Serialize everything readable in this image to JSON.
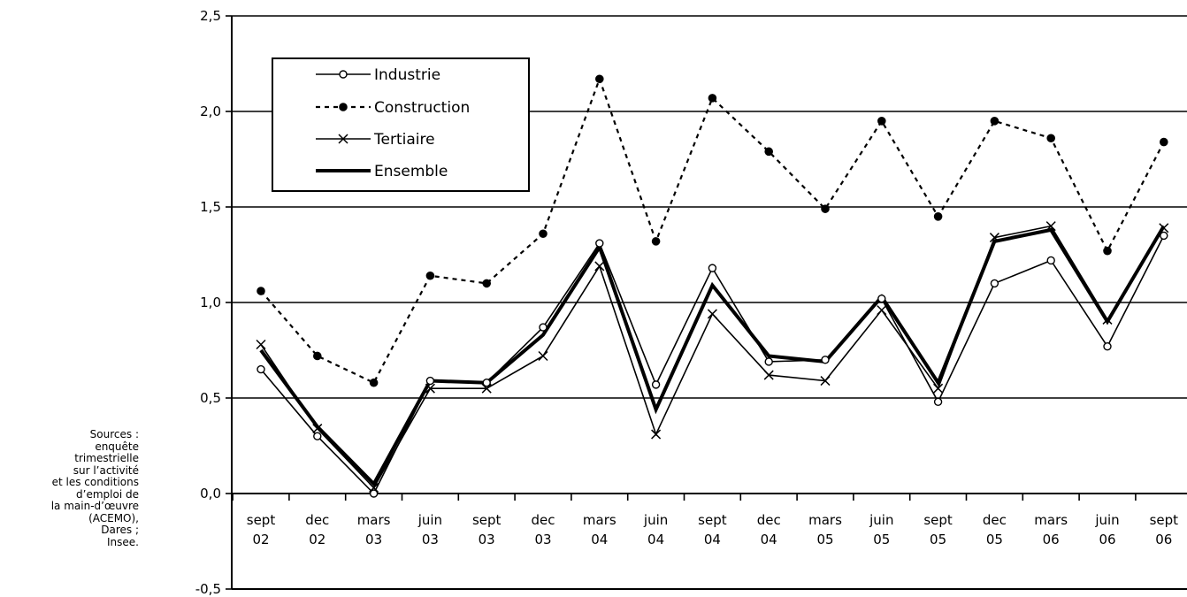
{
  "source_note": [
    "Sources :",
    "enquête",
    "trimestrielle",
    "sur l’activité",
    "et les conditions",
    "d’emploi de",
    "la main-d’œuvre",
    "(ACEMO),",
    "Dares ;",
    "Insee."
  ],
  "chart_data": {
    "type": "line",
    "title": "",
    "xlabel": "",
    "ylabel": "",
    "categories": [
      [
        "sept",
        "02"
      ],
      [
        "dec",
        "02"
      ],
      [
        "mars",
        "03"
      ],
      [
        "juin",
        "03"
      ],
      [
        "sept",
        "03"
      ],
      [
        "dec",
        "03"
      ],
      [
        "mars",
        "04"
      ],
      [
        "juin",
        "04"
      ],
      [
        "sept",
        "04"
      ],
      [
        "dec",
        "04"
      ],
      [
        "mars",
        "05"
      ],
      [
        "juin",
        "05"
      ],
      [
        "sept",
        "05"
      ],
      [
        "dec",
        "05"
      ],
      [
        "mars",
        "06"
      ],
      [
        "juin",
        "06"
      ],
      [
        "sept",
        "06"
      ]
    ],
    "ylim": [
      -0.5,
      2.5
    ],
    "yticks": [
      "-0,5",
      "0,0",
      "0,5",
      "1,0",
      "1,5",
      "2,0",
      "2,5"
    ],
    "grid": true,
    "legend_position": "top-left",
    "series": [
      {
        "name": "Industrie",
        "marker": "open-circle",
        "style": "solid-thin",
        "values": [
          0.65,
          0.3,
          0.0,
          0.59,
          0.58,
          0.87,
          1.31,
          0.57,
          1.18,
          0.69,
          0.7,
          1.02,
          0.48,
          1.1,
          1.22,
          0.77,
          1.35
        ]
      },
      {
        "name": "Construction",
        "marker": "filled-circle",
        "style": "dotted",
        "values": [
          1.06,
          0.72,
          0.58,
          1.14,
          1.1,
          1.36,
          2.17,
          1.32,
          2.07,
          1.79,
          1.49,
          1.95,
          1.45,
          1.95,
          1.86,
          1.27,
          1.84
        ]
      },
      {
        "name": "Tertiaire",
        "marker": "cross",
        "style": "solid-thin",
        "values": [
          0.78,
          0.34,
          0.03,
          0.55,
          0.55,
          0.72,
          1.19,
          0.31,
          0.94,
          0.62,
          0.59,
          0.96,
          0.55,
          1.34,
          1.4,
          0.91,
          1.39
        ]
      },
      {
        "name": "Ensemble",
        "marker": "none",
        "style": "solid-thick",
        "values": [
          0.75,
          0.35,
          0.05,
          0.59,
          0.58,
          0.83,
          1.29,
          0.44,
          1.09,
          0.72,
          0.69,
          1.03,
          0.58,
          1.32,
          1.38,
          0.9,
          1.4
        ]
      }
    ]
  }
}
